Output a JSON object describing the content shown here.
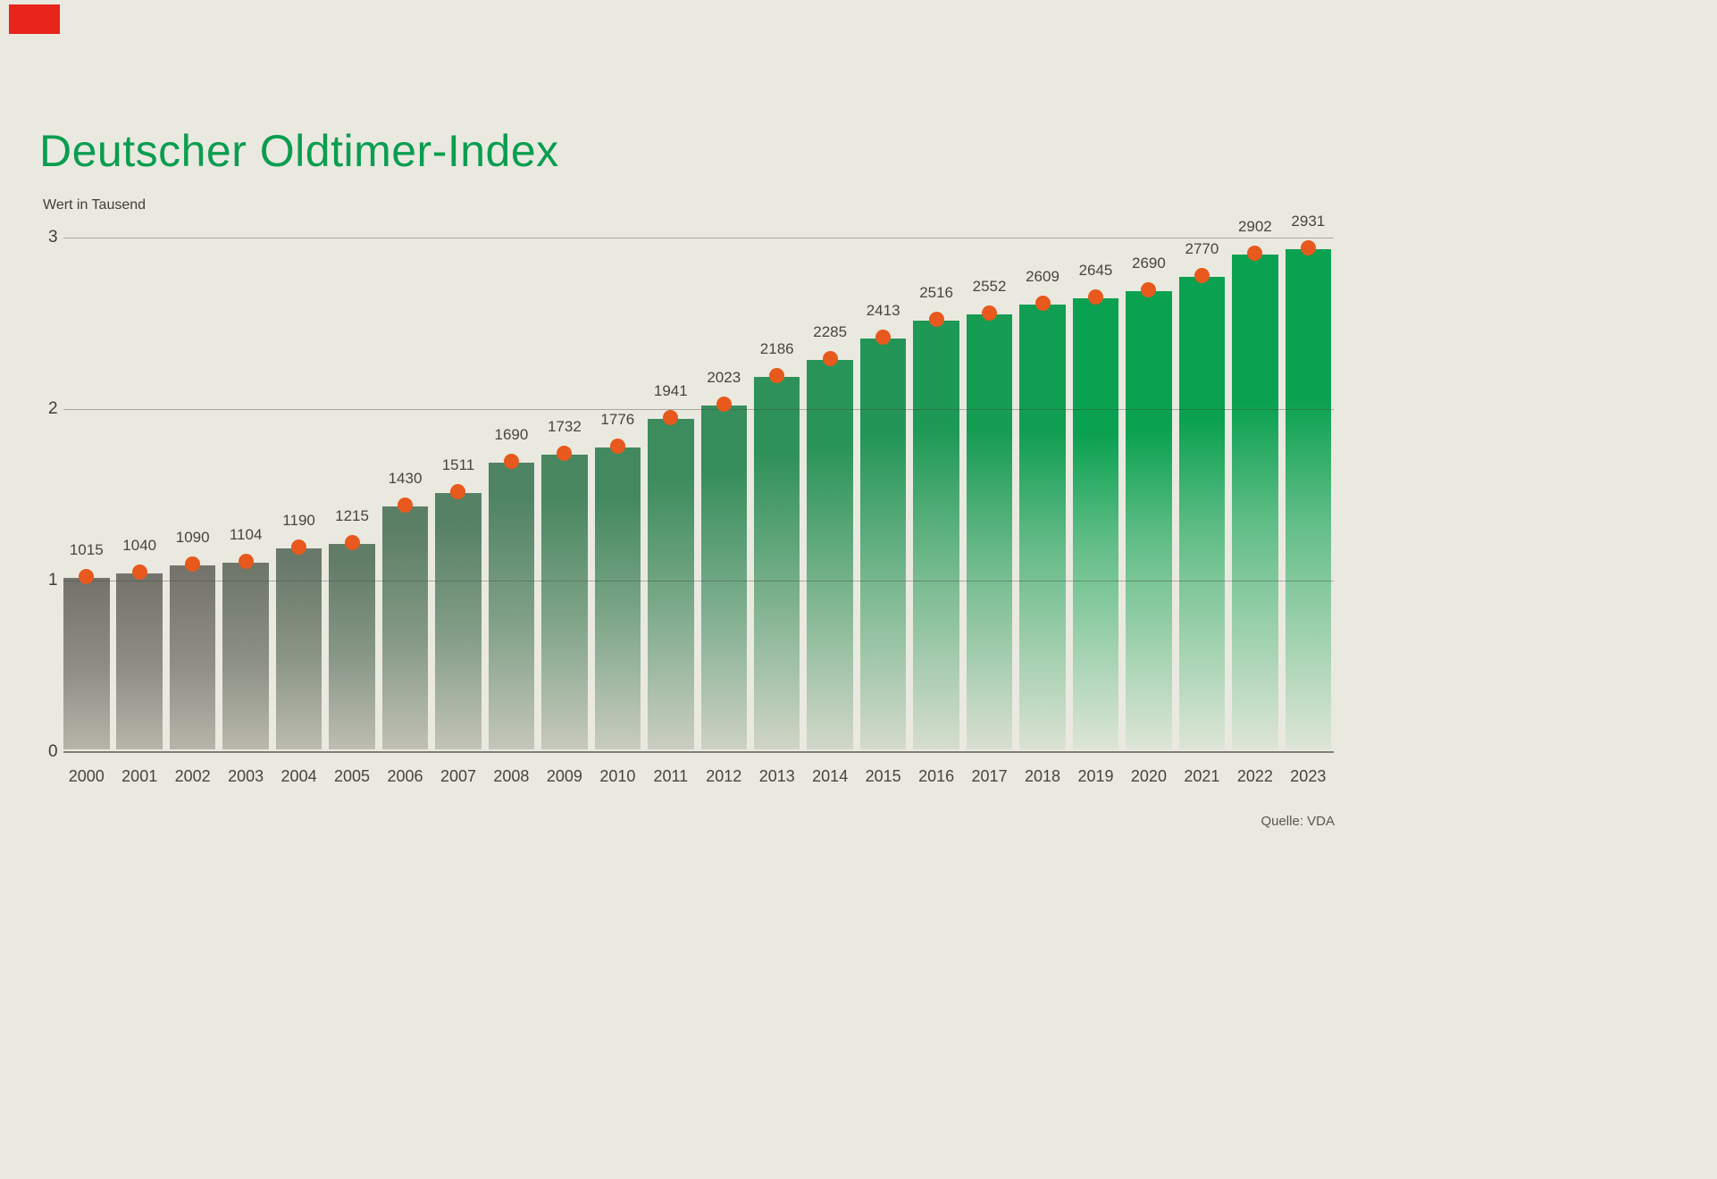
{
  "chart": {
    "title": "Deutscher Oldtimer-Index",
    "y_axis_title": "Wert in Tausend",
    "source": "Quelle: VDA"
  },
  "chart_data": {
    "type": "bar",
    "title": "Deutscher Oldtimer-Index",
    "xlabel": "",
    "ylabel": "Wert in Tausend",
    "categories": [
      "2000",
      "2001",
      "2002",
      "2003",
      "2004",
      "2005",
      "2006",
      "2007",
      "2008",
      "2009",
      "2010",
      "2011",
      "2012",
      "2013",
      "2014",
      "2015",
      "2016",
      "2017",
      "2018",
      "2019",
      "2020",
      "2021",
      "2022",
      "2023"
    ],
    "values": [
      1015,
      1040,
      1090,
      1104,
      1190,
      1215,
      1430,
      1511,
      1690,
      1732,
      1776,
      1941,
      2023,
      2186,
      2285,
      2413,
      2516,
      2552,
      2609,
      2645,
      2690,
      2770,
      2902,
      2931
    ],
    "y_ticks": [
      0,
      1,
      2,
      3
    ],
    "ylim": [
      0,
      3000
    ],
    "grid": true,
    "legend": "none",
    "value_labels_shown": true,
    "point_markers": "orange dot at each bar top",
    "source": "Quelle: VDA"
  },
  "colors": {
    "background": "#eae9e0",
    "title_green": "#0a9d50",
    "dot_orange": "#e7591d",
    "bar_top_start_gray": "#74746c",
    "bar_top_end_green": "#0aa150",
    "bar_bottom_start": "#b7b5aa",
    "bar_bottom_end": "#dde5d6",
    "label_text": "#454540",
    "axis_text": "#3e3e39",
    "source_text": "#57574f",
    "gridline": "rgba(70,70,64,0.4)",
    "baseline": "#807f77",
    "brand_mark_red": "#e8241b"
  }
}
